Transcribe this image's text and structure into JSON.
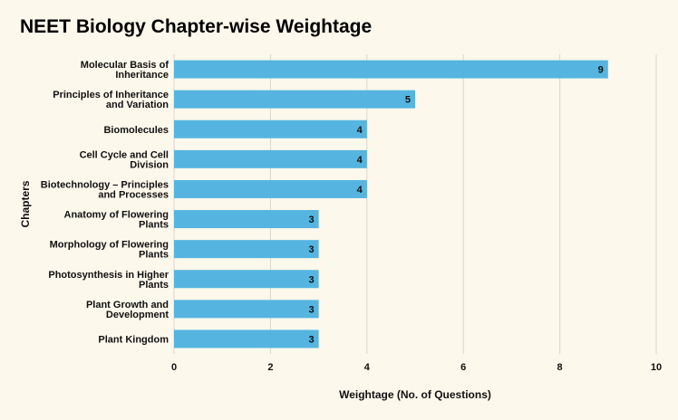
{
  "chart_data": {
    "type": "bar",
    "orientation": "horizontal",
    "title": "NEET Biology Chapter-wise Weightage",
    "xlabel": "Weightage (No. of Questions)",
    "ylabel": "Chapters",
    "xlim": [
      0,
      10
    ],
    "xticks": [
      0,
      2,
      4,
      6,
      8,
      10
    ],
    "grid": "vertical",
    "bar_color": "#55b5e0",
    "categories": [
      [
        "Molecular Basis of",
        "Inheritance"
      ],
      [
        "Principles of Inheritance",
        "and Variation"
      ],
      [
        "Biomolecules"
      ],
      [
        "Cell Cycle and Cell",
        "Division"
      ],
      [
        "Biotechnology – Principles",
        "and Processes"
      ],
      [
        "Anatomy of Flowering",
        "Plants"
      ],
      [
        "Morphology of Flowering",
        "Plants"
      ],
      [
        "Photosynthesis in Higher",
        "Plants"
      ],
      [
        "Plant Growth and",
        "Development"
      ],
      [
        "Plant Kingdom"
      ]
    ],
    "values": [
      9,
      5,
      4,
      4,
      4,
      3,
      3,
      3,
      3,
      3
    ]
  }
}
